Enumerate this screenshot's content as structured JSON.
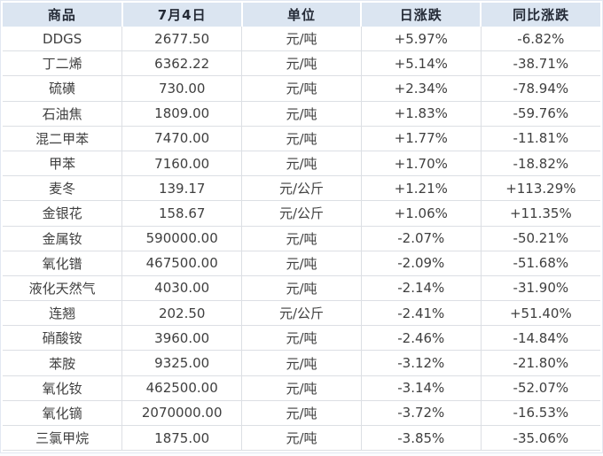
{
  "table": {
    "columns": [
      {
        "label": "商品"
      },
      {
        "label": "7月4日"
      },
      {
        "label": "单位"
      },
      {
        "label": "日涨跌"
      },
      {
        "label": "同比涨跌"
      }
    ],
    "rows": [
      {
        "name": "DDGS",
        "price": "2677.50",
        "unit": "元/吨",
        "daily": "+5.97%",
        "yoy": "-6.82%"
      },
      {
        "name": "丁二烯",
        "price": "6362.22",
        "unit": "元/吨",
        "daily": "+5.14%",
        "yoy": "-38.71%"
      },
      {
        "name": "硫磺",
        "price": "730.00",
        "unit": "元/吨",
        "daily": "+2.34%",
        "yoy": "-78.94%"
      },
      {
        "name": "石油焦",
        "price": "1809.00",
        "unit": "元/吨",
        "daily": "+1.83%",
        "yoy": "-59.76%"
      },
      {
        "name": "混二甲苯",
        "price": "7470.00",
        "unit": "元/吨",
        "daily": "+1.77%",
        "yoy": "-11.81%"
      },
      {
        "name": "甲苯",
        "price": "7160.00",
        "unit": "元/吨",
        "daily": "+1.70%",
        "yoy": "-18.82%"
      },
      {
        "name": "麦冬",
        "price": "139.17",
        "unit": "元/公斤",
        "daily": "+1.21%",
        "yoy": "+113.29%"
      },
      {
        "name": "金银花",
        "price": "158.67",
        "unit": "元/公斤",
        "daily": "+1.06%",
        "yoy": "+11.35%"
      },
      {
        "name": "金属钕",
        "price": "590000.00",
        "unit": "元/吨",
        "daily": "-2.07%",
        "yoy": "-50.21%"
      },
      {
        "name": "氧化镨",
        "price": "467500.00",
        "unit": "元/吨",
        "daily": "-2.09%",
        "yoy": "-51.68%"
      },
      {
        "name": "液化天然气",
        "price": "4030.00",
        "unit": "元/吨",
        "daily": "-2.14%",
        "yoy": "-31.90%"
      },
      {
        "name": "连翘",
        "price": "202.50",
        "unit": "元/公斤",
        "daily": "-2.41%",
        "yoy": "+51.40%"
      },
      {
        "name": "硝酸铵",
        "price": "3960.00",
        "unit": "元/吨",
        "daily": "-2.46%",
        "yoy": "-14.84%"
      },
      {
        "name": "苯胺",
        "price": "9325.00",
        "unit": "元/吨",
        "daily": "-3.12%",
        "yoy": "-21.80%"
      },
      {
        "name": "氧化钕",
        "price": "462500.00",
        "unit": "元/吨",
        "daily": "-3.14%",
        "yoy": "-52.07%"
      },
      {
        "name": "氧化镝",
        "price": "2070000.00",
        "unit": "元/吨",
        "daily": "-3.72%",
        "yoy": "-16.53%"
      },
      {
        "name": "三氯甲烷",
        "price": "1875.00",
        "unit": "元/吨",
        "daily": "-3.85%",
        "yoy": "-35.06%"
      }
    ]
  },
  "colors": {
    "up": "#fe2d2d",
    "down": "#00a049",
    "header_bg": "#dbe5f1",
    "header_fg": "#242a36"
  }
}
